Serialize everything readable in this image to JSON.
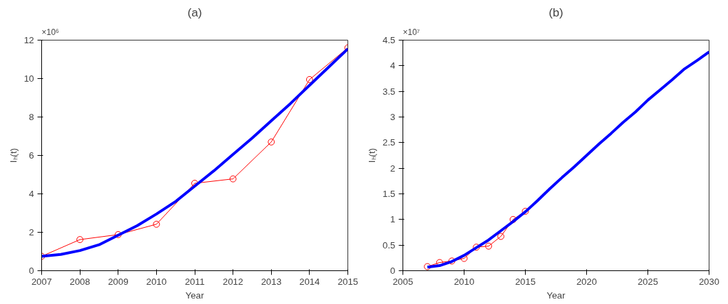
{
  "chart_data": [
    {
      "type": "line",
      "title": "(a)",
      "xlabel": "Year",
      "ylabel": "Iₕ(t)",
      "annotations": [
        "×10⁶"
      ],
      "grid": false,
      "xlim": [
        2007,
        2015
      ],
      "xticks": [
        2007,
        2008,
        2009,
        2010,
        2011,
        2012,
        2013,
        2014,
        2015
      ],
      "ylim": [
        0,
        12
      ],
      "yticks": [
        0,
        2,
        4,
        6,
        8,
        10,
        12
      ],
      "series": [
        {
          "color": "#ff0000",
          "marker": "circle",
          "x": [
            2007,
            2008,
            2009,
            2010,
            2011,
            2012,
            2013,
            2014,
            2015
          ],
          "values": [
            0.75,
            1.62,
            1.88,
            2.42,
            4.55,
            4.78,
            6.7,
            9.95,
            11.6
          ]
        },
        {
          "color": "#0000ff",
          "marker": "none",
          "x": [
            2007,
            2007.5,
            2008,
            2008.5,
            2009,
            2009.5,
            2010,
            2010.5,
            2011,
            2011.5,
            2012,
            2012.5,
            2013,
            2013.5,
            2014,
            2014.5,
            2015
          ],
          "values": [
            0.75,
            0.85,
            1.05,
            1.35,
            1.85,
            2.35,
            2.95,
            3.6,
            4.4,
            5.2,
            6.05,
            6.9,
            7.8,
            8.7,
            9.65,
            10.6,
            11.55
          ]
        }
      ]
    },
    {
      "type": "line",
      "title": "(b)",
      "xlabel": "Year",
      "ylabel": "Iₕ(t)",
      "annotations": [
        "×10⁷"
      ],
      "grid": false,
      "xlim": [
        2005,
        2030
      ],
      "xticks": [
        2005,
        2010,
        2015,
        2020,
        2025,
        2030
      ],
      "ylim": [
        0,
        4.5
      ],
      "yticks": [
        0,
        0.5,
        1,
        1.5,
        2,
        2.5,
        3,
        3.5,
        4,
        4.5
      ],
      "series": [
        {
          "color": "#ff0000",
          "marker": "circle",
          "x": [
            2007,
            2008,
            2009,
            2010,
            2011,
            2012,
            2013,
            2014,
            2015
          ],
          "values": [
            0.08,
            0.16,
            0.19,
            0.24,
            0.46,
            0.48,
            0.67,
            1.0,
            1.16
          ]
        },
        {
          "color": "#0000ff",
          "marker": "none",
          "x": [
            2007,
            2008,
            2009,
            2010,
            2011,
            2012,
            2013,
            2014,
            2015,
            2016,
            2017,
            2018,
            2019,
            2020,
            2021,
            2022,
            2023,
            2024,
            2025,
            2026,
            2027,
            2028,
            2029,
            2030
          ],
          "values": [
            0.07,
            0.1,
            0.18,
            0.3,
            0.45,
            0.6,
            0.78,
            0.96,
            1.15,
            1.37,
            1.6,
            1.82,
            2.03,
            2.25,
            2.47,
            2.68,
            2.9,
            3.1,
            3.33,
            3.53,
            3.73,
            3.94,
            4.1,
            4.27
          ]
        }
      ]
    }
  ]
}
